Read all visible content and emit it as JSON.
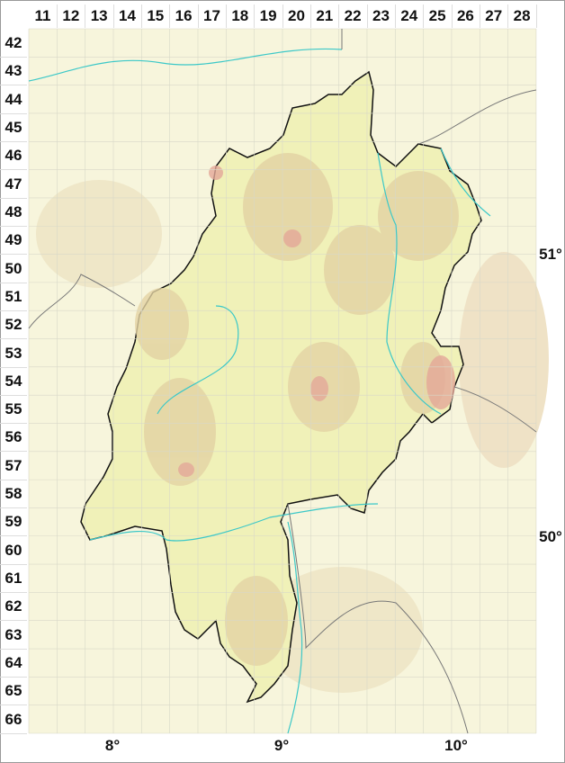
{
  "columns": [
    "11",
    "12",
    "13",
    "14",
    "15",
    "16",
    "17",
    "18",
    "19",
    "20",
    "21",
    "22",
    "23",
    "24",
    "25",
    "26",
    "27",
    "28"
  ],
  "rows": [
    "42",
    "43",
    "44",
    "45",
    "46",
    "47",
    "48",
    "49",
    "50",
    "51",
    "52",
    "53",
    "54",
    "55",
    "56",
    "57",
    "58",
    "59",
    "60",
    "61",
    "62",
    "63",
    "64",
    "65",
    "66"
  ],
  "longitudes": [
    "8°",
    "9°",
    "10°"
  ],
  "latitudes": [
    "51°",
    "50°"
  ],
  "colors": {
    "background": "#f7f5dc",
    "state_fill": "#f0f1b8",
    "relief": "#e3d3a4",
    "high_relief": "#e3a898",
    "border": "#111111",
    "river": "#3cc8c8",
    "neighbor_border": "#777777",
    "grid": "#d8d8c8"
  }
}
